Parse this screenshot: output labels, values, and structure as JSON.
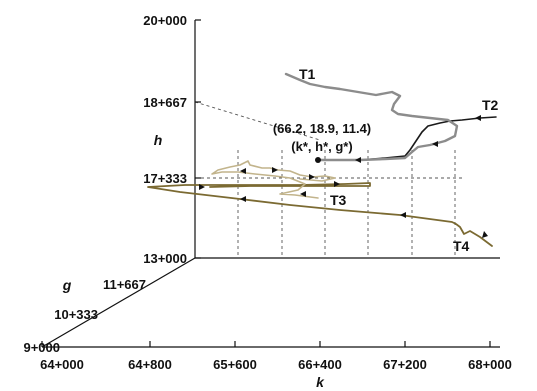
{
  "chart_data": {
    "type": "line",
    "projection": "3d",
    "axes": {
      "k": {
        "label": "k",
        "ticks": [
          "64+000",
          "64+800",
          "65+600",
          "66+400",
          "67+200",
          "68+000"
        ]
      },
      "h": {
        "label": "h",
        "ticks": [
          "13+000",
          "17+333",
          "18+667",
          "20+000"
        ]
      },
      "g": {
        "label": "g",
        "ticks": [
          "9+000",
          "10+333",
          "11+667"
        ]
      }
    },
    "equilibrium": {
      "label": "(66.2, 18.9, 11.4)",
      "sublabel": "(k*, h*, g*)",
      "k": 66.2,
      "h": 18.9,
      "g": 11.4
    },
    "series": [
      {
        "name": "T1",
        "color": "#8c8c8c"
      },
      {
        "name": "T2",
        "color": "#1a1a1a"
      },
      {
        "name": "T3",
        "color": "#c2b48c"
      },
      {
        "name": "T4",
        "color": "#7b6a32"
      }
    ]
  }
}
